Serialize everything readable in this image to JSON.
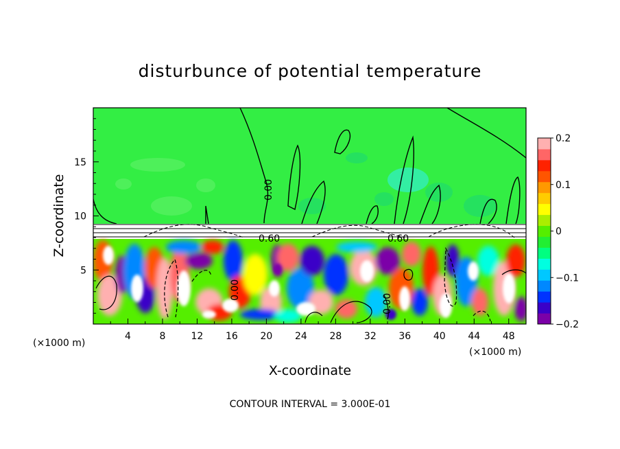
{
  "chart_data": {
    "type": "heatmap",
    "title": "disturbunce of potential temperature",
    "xlabel": "X-coordinate",
    "ylabel": "Z-coordinate",
    "x_scale_label": "(×1000 m)",
    "y_scale_label": "(×1000 m)",
    "xlim": [
      0,
      50
    ],
    "ylim": [
      0,
      20
    ],
    "x_ticks": [
      "4",
      "8",
      "12",
      "16",
      "20",
      "24",
      "28",
      "32",
      "36",
      "40",
      "44",
      "48"
    ],
    "y_ticks": [
      "5",
      "10",
      "15"
    ],
    "colorbar": {
      "range": [
        -0.2,
        0.2
      ],
      "tick_labels": [
        "0.2",
        "0.1",
        "0",
        "−0.1",
        "−0.2"
      ],
      "colors": [
        "#7b00a8",
        "#3a00c8",
        "#0033ff",
        "#0088ff",
        "#00c8ff",
        "#00ffe0",
        "#00ff80",
        "#22ee33",
        "#55ee00",
        "#aaee00",
        "#ffff00",
        "#ffcc00",
        "#ff9900",
        "#ff5500",
        "#ff2200",
        "#ff6666",
        "#ffb0b0"
      ]
    },
    "contour_labels": [
      "0.60",
      "0.60",
      "0.00",
      "0.00",
      "0.00"
    ],
    "contour_interval": "CONTOUR INTERVAL = 3.000E-01",
    "grid": false
  },
  "colors": {
    "background": "#ffffff",
    "upper_field": "#33ee44",
    "upper_field_light": "#55f060",
    "upper_field_dark": "#22dd66",
    "cyan_patch": "#33eebb"
  }
}
